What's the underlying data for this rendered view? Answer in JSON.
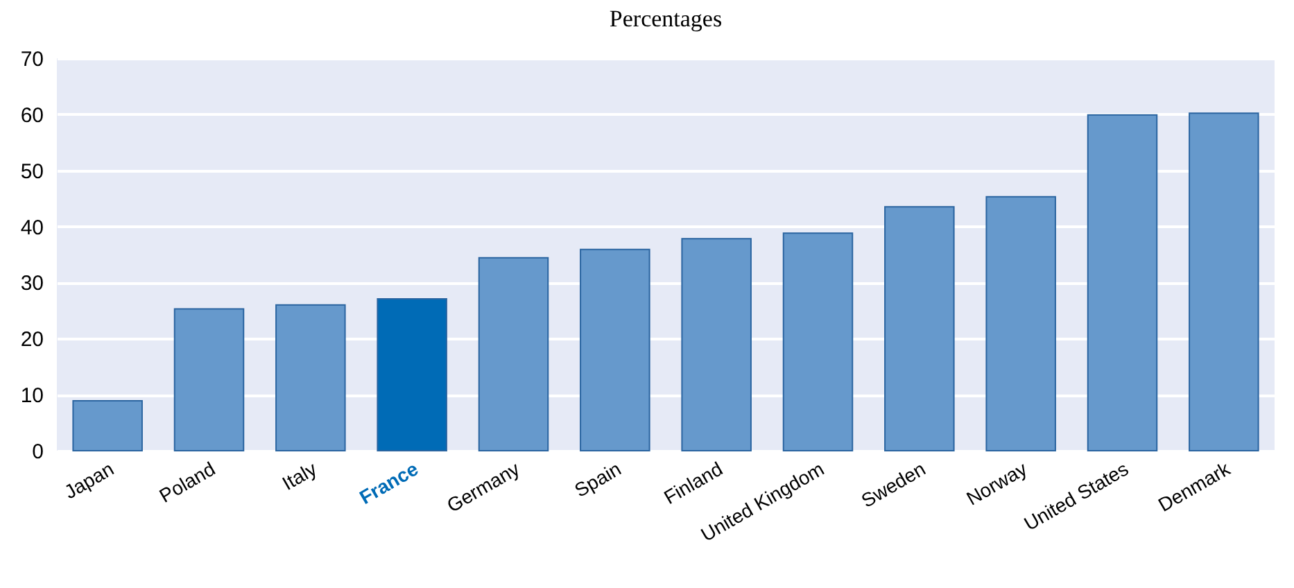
{
  "chart_data": {
    "type": "bar",
    "title": "Percentages",
    "categories": [
      "Japan",
      "Poland",
      "Italy",
      "France",
      "Germany",
      "Spain",
      "Finland",
      "United Kingdom",
      "Sweden",
      "Norway",
      "United States",
      "Denmark"
    ],
    "values": [
      8.9,
      25.3,
      26,
      27.1,
      34.4,
      35.9,
      37.8,
      38.8,
      43.5,
      45.3,
      59.9,
      60.2
    ],
    "colors": [
      "#6699cc",
      "#6699cc",
      "#6699cc",
      "#006bb6",
      "#6699cc",
      "#6699cc",
      "#6699cc",
      "#6699cc",
      "#6699cc",
      "#6699cc",
      "#6699cc",
      "#6699cc"
    ],
    "ylim": [
      0,
      70
    ],
    "yticks": [
      0,
      10,
      20,
      30,
      40,
      50,
      60,
      70
    ],
    "grid": "y"
  }
}
